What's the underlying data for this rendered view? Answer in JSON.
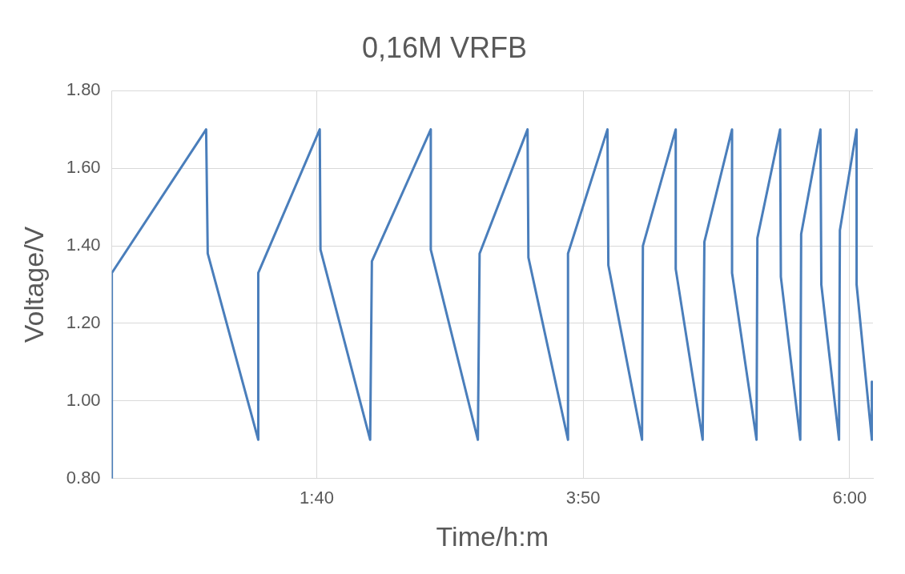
{
  "chart_data": {
    "type": "line",
    "title": "0,16M VRFB",
    "xlabel": "Time/h:m",
    "ylabel": "Voltage/V",
    "xlim": [
      0,
      6.19
    ],
    "xticks": [
      {
        "value": 0,
        "label": null
      },
      {
        "value": 1.6667,
        "label": "1:40"
      },
      {
        "value": 3.8333,
        "label": "3:50"
      },
      {
        "value": 6,
        "label": "6:00"
      }
    ],
    "ylim": [
      0.8,
      1.8
    ],
    "yticks": [
      {
        "value": 0.8,
        "label": "0.80"
      },
      {
        "value": 1.0,
        "label": "1.00"
      },
      {
        "value": 1.2,
        "label": "1.20"
      },
      {
        "value": 1.4,
        "label": "1.40"
      },
      {
        "value": 1.6,
        "label": "1.60"
      },
      {
        "value": 1.8,
        "label": "1.80"
      }
    ],
    "grid": true,
    "legend": false,
    "marker": "none",
    "line_style": "solid",
    "series": [
      {
        "color": "#4a7ebb",
        "x": [
          0,
          0,
          0.767,
          0.78,
          1.191,
          1.191,
          1.691,
          1.697,
          2.101,
          2.115,
          2.594,
          2.594,
          2.977,
          2.991,
          3.381,
          3.388,
          3.71,
          3.71,
          4.031,
          4.038,
          4.312,
          4.319,
          4.586,
          4.586,
          4.805,
          4.819,
          5.044,
          5.044,
          5.243,
          5.25,
          5.435,
          5.441,
          5.599,
          5.606,
          5.763,
          5.77,
          5.914,
          5.921,
          6.057,
          6.057,
          6.181,
          6.181
        ],
        "values": [
          0.8,
          1.33,
          1.7,
          1.38,
          0.9,
          1.33,
          1.7,
          1.39,
          0.9,
          1.36,
          1.7,
          1.39,
          0.9,
          1.38,
          1.7,
          1.37,
          0.9,
          1.38,
          1.7,
          1.35,
          0.9,
          1.4,
          1.7,
          1.34,
          0.9,
          1.41,
          1.7,
          1.33,
          0.9,
          1.42,
          1.7,
          1.32,
          0.9,
          1.43,
          1.7,
          1.3,
          0.9,
          1.44,
          1.7,
          1.3,
          0.9,
          1.05
        ]
      }
    ]
  }
}
